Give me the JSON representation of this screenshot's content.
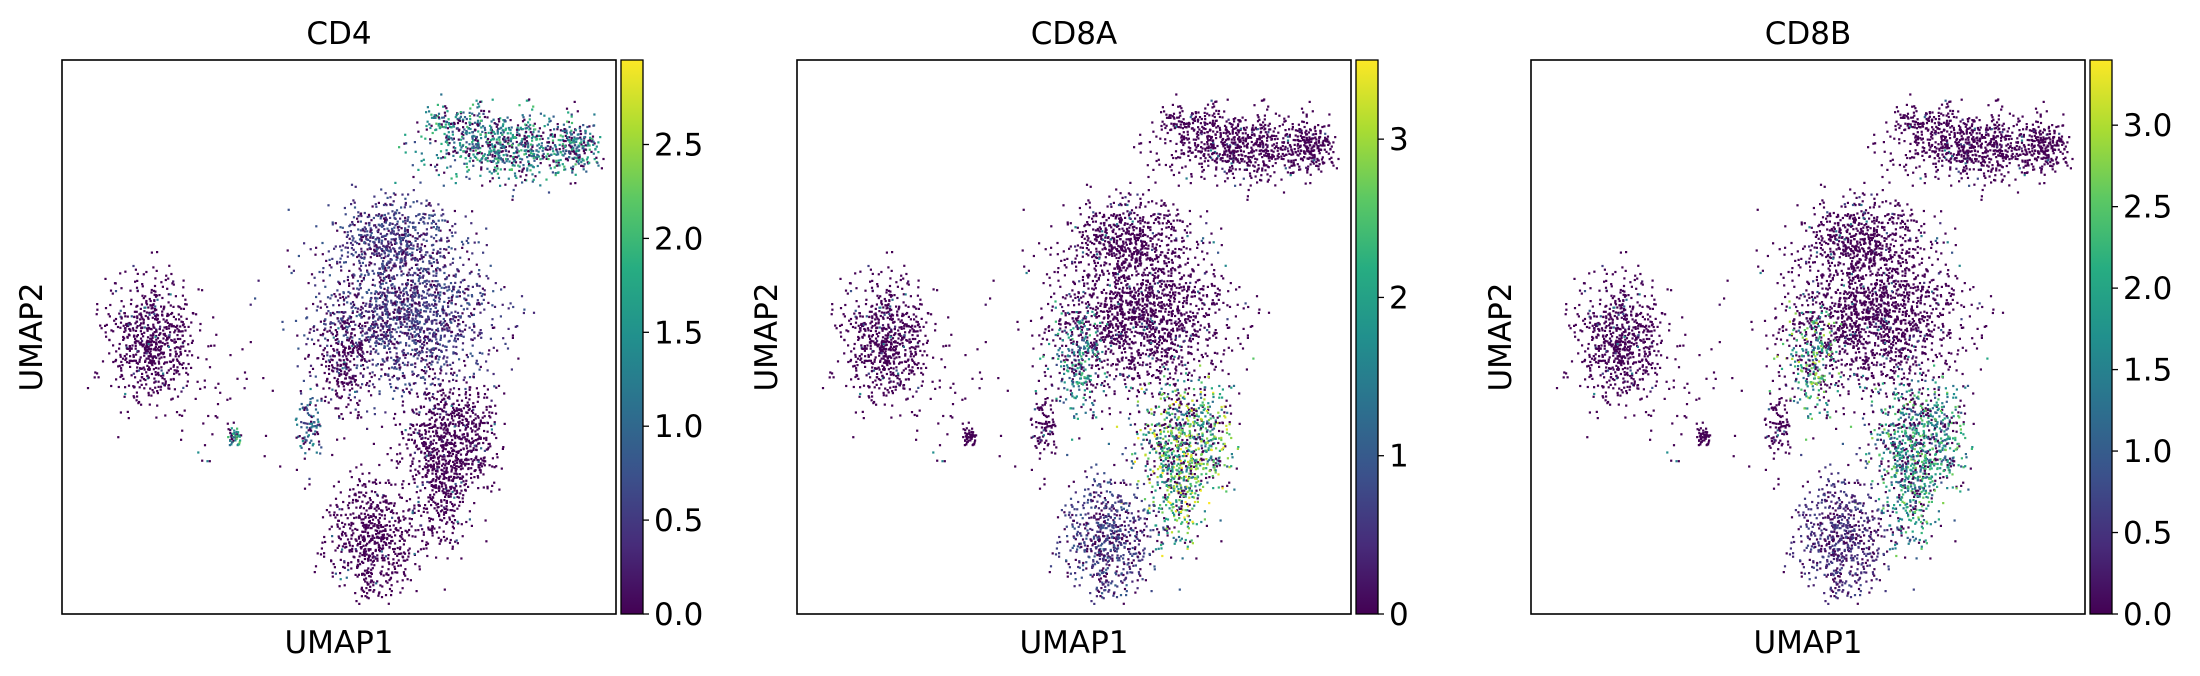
{
  "chart_data": [
    {
      "type": "scatter",
      "title": "CD4",
      "xlabel": "UMAP1",
      "ylabel": "UMAP2",
      "colormap": "viridis",
      "colorbar": {
        "min": 0.0,
        "max": 2.95,
        "ticks": [
          "0.0",
          "0.5",
          "1.0",
          "1.5",
          "2.0",
          "2.5"
        ],
        "tick_values": [
          0,
          0.5,
          1.0,
          1.5,
          2.0,
          2.5
        ]
      },
      "grid": false,
      "high_expression_regions": [
        {
          "cluster": "top-right lobe",
          "level": 1.4
        },
        {
          "cluster": "central upper mass",
          "level": 0.55
        },
        {
          "cluster": "small left-center islet",
          "level": 1.5
        },
        {
          "cluster": "small center islet",
          "level": 1.0
        }
      ]
    },
    {
      "type": "scatter",
      "title": "CD8A",
      "xlabel": "UMAP1",
      "ylabel": "UMAP2",
      "colormap": "viridis",
      "colorbar": {
        "min": 0,
        "max": 3.5,
        "ticks": [
          "0",
          "1",
          "2",
          "3"
        ],
        "tick_values": [
          0,
          1,
          2,
          3
        ]
      },
      "grid": false,
      "high_expression_regions": [
        {
          "cluster": "lower-right arm",
          "level": 2.3
        },
        {
          "cluster": "central left pocket",
          "level": 1.6
        },
        {
          "cluster": "bottom center mass",
          "level": 0.7
        }
      ]
    },
    {
      "type": "scatter",
      "title": "CD8B",
      "xlabel": "UMAP1",
      "ylabel": "UMAP2",
      "colormap": "viridis",
      "colorbar": {
        "min": 0.0,
        "max": 3.4,
        "ticks": [
          "0.0",
          "0.5",
          "1.0",
          "1.5",
          "2.0",
          "2.5",
          "3.0"
        ],
        "tick_values": [
          0,
          0.5,
          1.0,
          1.5,
          2.0,
          2.5,
          3.0
        ]
      },
      "grid": false,
      "high_expression_regions": [
        {
          "cluster": "central left pocket",
          "level": 2.0
        },
        {
          "cluster": "lower-right arm",
          "level": 1.8
        },
        {
          "cluster": "bottom center mass",
          "level": 0.5
        }
      ]
    }
  ]
}
